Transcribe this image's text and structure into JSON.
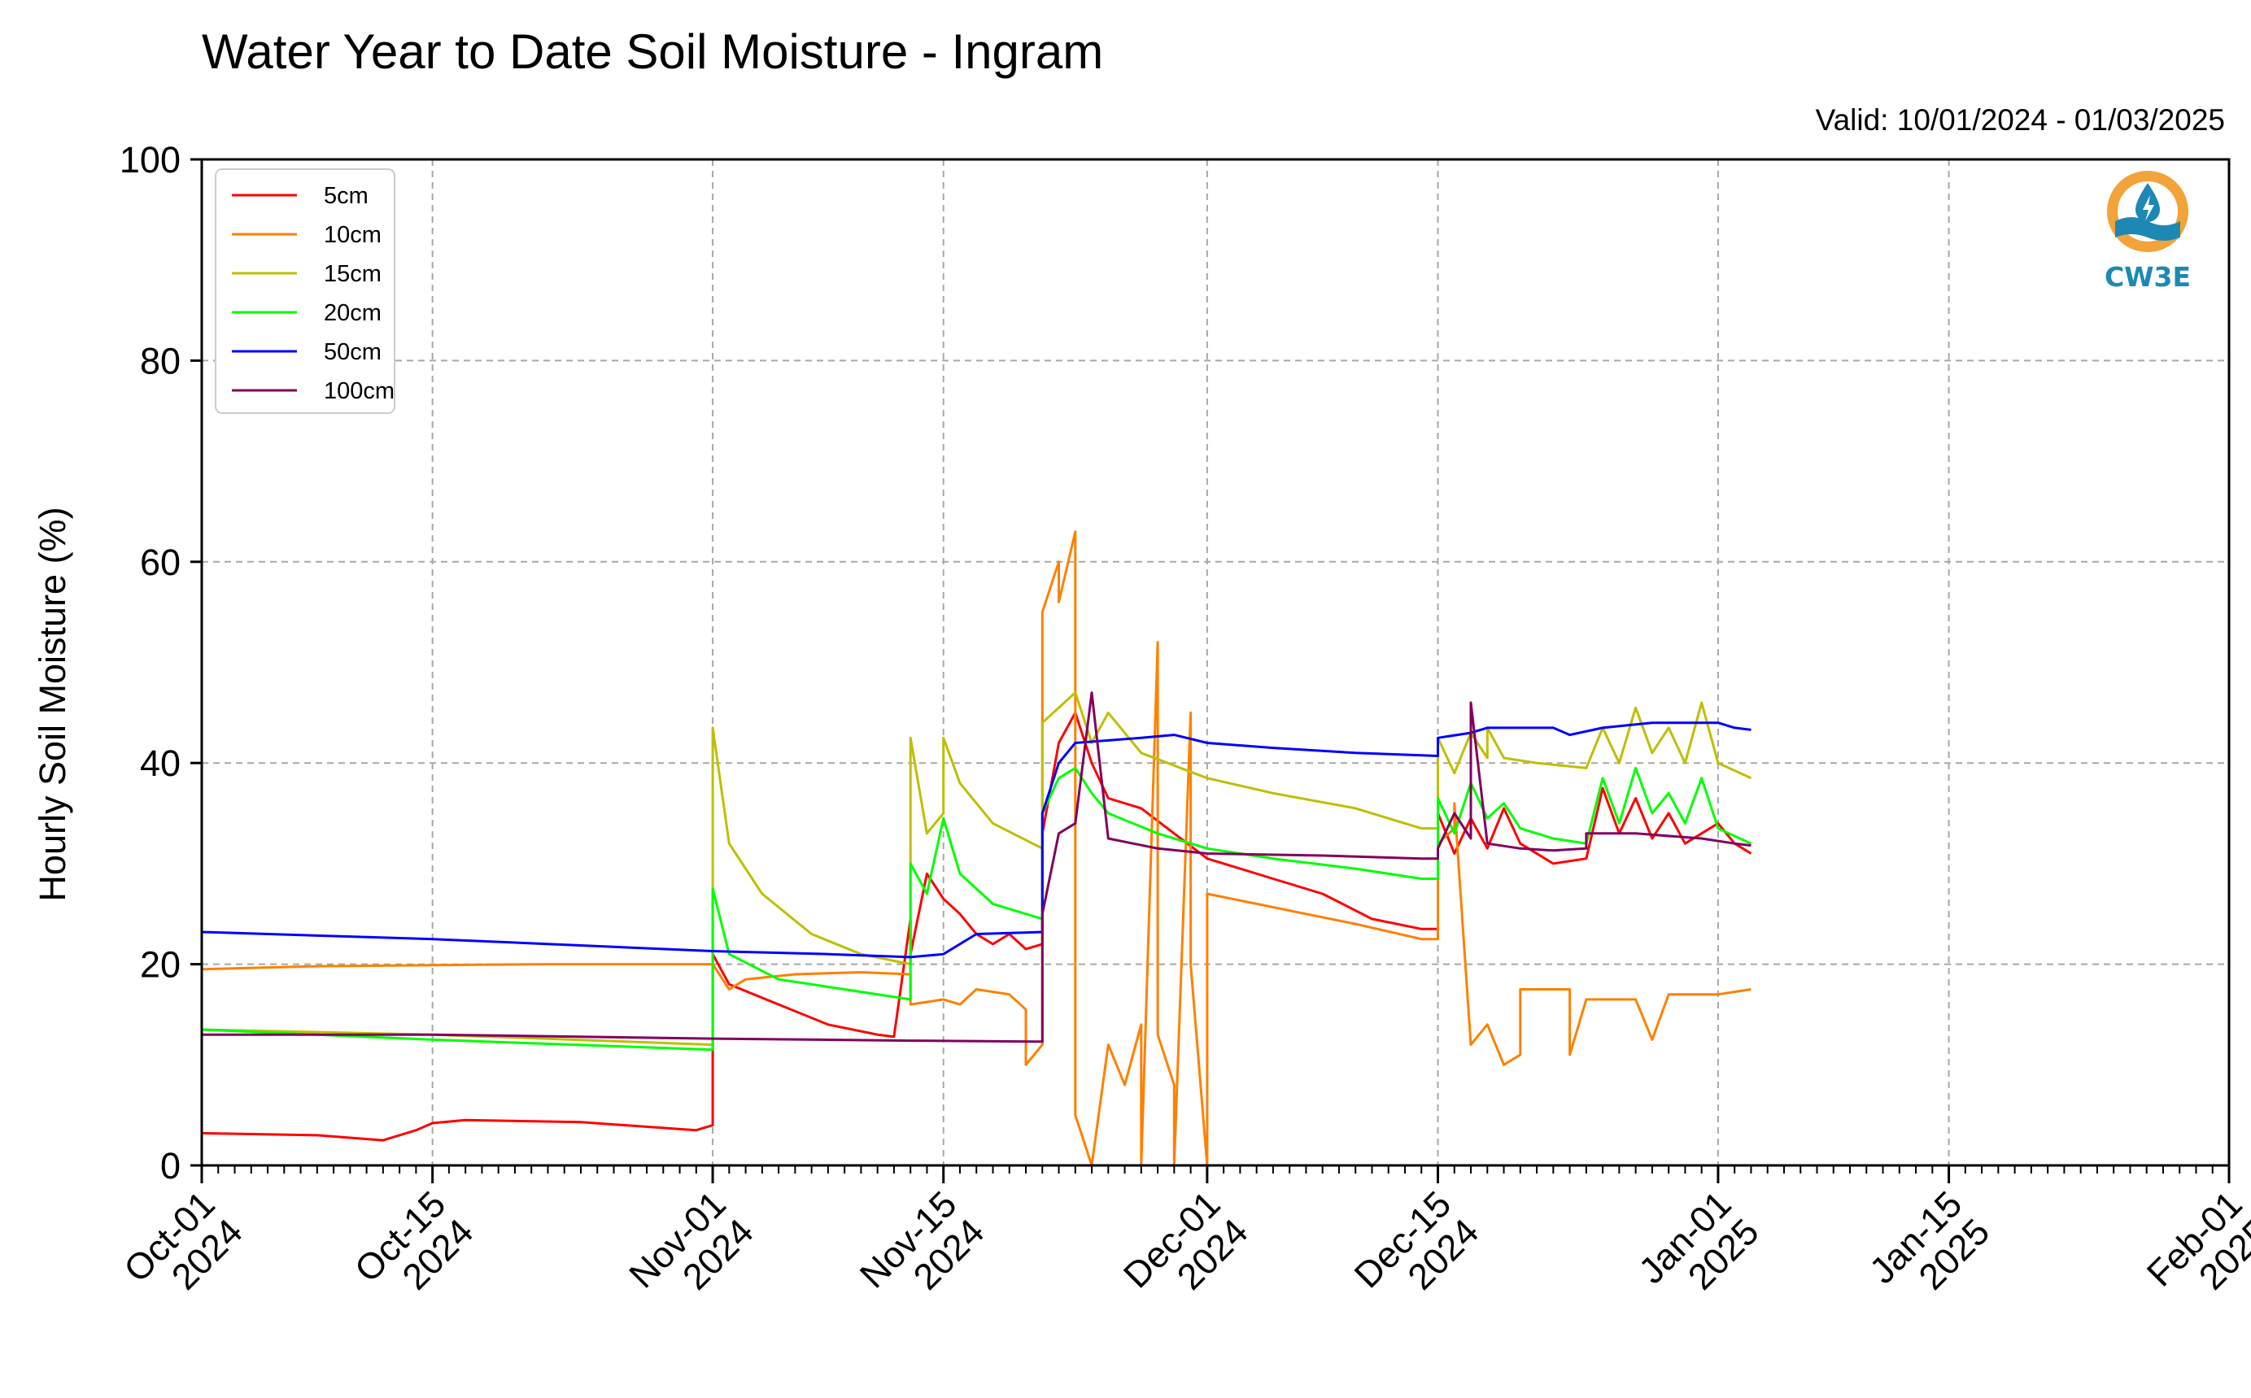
{
  "chart_data": {
    "type": "line",
    "title": "Water Year to Date Soil Moisture - Ingram",
    "subtitle": "Valid: 10/01/2024 - 01/03/2025",
    "ylabel": "Hourly Soil Moisture (%)",
    "xlabel": "",
    "ylim": [
      0,
      100
    ],
    "xlim": [
      "2024-10-01",
      "2025-02-01"
    ],
    "y_ticks": [
      "0",
      "20",
      "40",
      "60",
      "80",
      "100"
    ],
    "x_ticks": [
      {
        "date": "2024-10-01",
        "label": [
          "Oct-01",
          "2024"
        ]
      },
      {
        "date": "2024-10-15",
        "label": [
          "Oct-15",
          "2024"
        ]
      },
      {
        "date": "2024-11-01",
        "label": [
          "Nov-01",
          "2024"
        ]
      },
      {
        "date": "2024-11-15",
        "label": [
          "Nov-15",
          "2024"
        ]
      },
      {
        "date": "2024-12-01",
        "label": [
          "Dec-01",
          "2024"
        ]
      },
      {
        "date": "2024-12-15",
        "label": [
          "Dec-15",
          "2024"
        ]
      },
      {
        "date": "2025-01-01",
        "label": [
          "Jan-01",
          "2025"
        ]
      },
      {
        "date": "2025-01-15",
        "label": [
          "Jan-15",
          "2025"
        ]
      },
      {
        "date": "2025-02-01",
        "label": [
          "Feb-01",
          "2025"
        ]
      }
    ],
    "grid": true,
    "legend_position": "top-left",
    "logo_text": "CW3E",
    "series": [
      {
        "name": "5cm",
        "color": "#ff0000",
        "points": [
          [
            "2024-10-01",
            3.2
          ],
          [
            "2024-10-08",
            3.0
          ],
          [
            "2024-10-12",
            2.5
          ],
          [
            "2024-10-14",
            3.5
          ],
          [
            "2024-10-15",
            4.2
          ],
          [
            "2024-10-17",
            4.5
          ],
          [
            "2024-10-24",
            4.3
          ],
          [
            "2024-10-31",
            3.5
          ],
          [
            "2024-11-01",
            4.0
          ],
          [
            "2024-11-01",
            21.0
          ],
          [
            "2024-11-02",
            18.0
          ],
          [
            "2024-11-05",
            16.0
          ],
          [
            "2024-11-08",
            14.0
          ],
          [
            "2024-11-11",
            13.0
          ],
          [
            "2024-11-12",
            12.8
          ],
          [
            "2024-11-13",
            24.5
          ],
          [
            "2024-11-13",
            21.0
          ],
          [
            "2024-11-14",
            29.0
          ],
          [
            "2024-11-15",
            26.5
          ],
          [
            "2024-11-16",
            25.0
          ],
          [
            "2024-11-17",
            23.0
          ],
          [
            "2024-11-18",
            22.0
          ],
          [
            "2024-11-19",
            23.0
          ],
          [
            "2024-11-20",
            21.5
          ],
          [
            "2024-11-21",
            22.0
          ],
          [
            "2024-11-21",
            33.0
          ],
          [
            "2024-11-22",
            42.0
          ],
          [
            "2024-11-23",
            45.0
          ],
          [
            "2024-11-24",
            40.0
          ],
          [
            "2024-11-25",
            36.5
          ],
          [
            "2024-11-27",
            35.5
          ],
          [
            "2024-11-29",
            33.0
          ],
          [
            "2024-12-01",
            30.5
          ],
          [
            "2024-12-03",
            29.5
          ],
          [
            "2024-12-05",
            28.5
          ],
          [
            "2024-12-08",
            27.0
          ],
          [
            "2024-12-11",
            24.5
          ],
          [
            "2024-12-14",
            23.5
          ],
          [
            "2024-12-15",
            23.5
          ],
          [
            "2024-12-15",
            35.0
          ],
          [
            "2024-12-16",
            31.0
          ],
          [
            "2024-12-17",
            34.5
          ],
          [
            "2024-12-18",
            31.5
          ],
          [
            "2024-12-19",
            35.5
          ],
          [
            "2024-12-20",
            32.0
          ],
          [
            "2024-12-22",
            30.0
          ],
          [
            "2024-12-24",
            30.5
          ],
          [
            "2024-12-25",
            37.5
          ],
          [
            "2024-12-26",
            33.0
          ],
          [
            "2024-12-27",
            36.5
          ],
          [
            "2024-12-28",
            32.5
          ],
          [
            "2024-12-29",
            35.0
          ],
          [
            "2024-12-30",
            32.0
          ],
          [
            "2025-01-01",
            34.0
          ],
          [
            "2025-01-02",
            32.0
          ],
          [
            "2025-01-03",
            31.0
          ]
        ]
      },
      {
        "name": "10cm",
        "color": "#ff8000",
        "points": [
          [
            "2024-10-01",
            19.5
          ],
          [
            "2024-10-08",
            19.8
          ],
          [
            "2024-10-15",
            19.9
          ],
          [
            "2024-10-22",
            20.0
          ],
          [
            "2024-11-01",
            20.0
          ],
          [
            "2024-11-02",
            17.5
          ],
          [
            "2024-11-03",
            18.5
          ],
          [
            "2024-11-06",
            19.0
          ],
          [
            "2024-11-10",
            19.2
          ],
          [
            "2024-11-13",
            19.0
          ],
          [
            "2024-11-13",
            16.0
          ],
          [
            "2024-11-15",
            16.5
          ],
          [
            "2024-11-16",
            16.0
          ],
          [
            "2024-11-17",
            17.5
          ],
          [
            "2024-11-19",
            17.0
          ],
          [
            "2024-11-20",
            15.5
          ],
          [
            "2024-11-20",
            10.0
          ],
          [
            "2024-11-21",
            12.0
          ],
          [
            "2024-11-21",
            55.0
          ],
          [
            "2024-11-22",
            60.0
          ],
          [
            "2024-11-22",
            56.0
          ],
          [
            "2024-11-23",
            63.0
          ],
          [
            "2024-11-23",
            5.0
          ],
          [
            "2024-11-24",
            0.0
          ],
          [
            "2024-11-25",
            12.0
          ],
          [
            "2024-11-26",
            8.0
          ],
          [
            "2024-11-27",
            14.0
          ],
          [
            "2024-11-27",
            0.0
          ],
          [
            "2024-11-28",
            52.0
          ],
          [
            "2024-11-28",
            13.0
          ],
          [
            "2024-11-29",
            8.0
          ],
          [
            "2024-11-29",
            0.0
          ],
          [
            "2024-11-30",
            45.0
          ],
          [
            "2024-11-30",
            20.0
          ],
          [
            "2024-12-01",
            0.0
          ],
          [
            "2024-12-01",
            27.0
          ],
          [
            "2024-12-04",
            26.0
          ],
          [
            "2024-12-07",
            25.0
          ],
          [
            "2024-12-10",
            24.0
          ],
          [
            "2024-12-14",
            22.5
          ],
          [
            "2024-12-15",
            22.5
          ],
          [
            "2024-12-15",
            32.0
          ],
          [
            "2024-12-16",
            33.5
          ],
          [
            "2024-12-16",
            36.0
          ],
          [
            "2024-12-17",
            12.0
          ],
          [
            "2024-12-18",
            14.0
          ],
          [
            "2024-12-19",
            10.0
          ],
          [
            "2024-12-20",
            11.0
          ],
          [
            "2024-12-20",
            17.5
          ],
          [
            "2024-12-23",
            17.5
          ],
          [
            "2024-12-23",
            11.0
          ],
          [
            "2024-12-24",
            16.5
          ],
          [
            "2024-12-27",
            16.5
          ],
          [
            "2024-12-28",
            12.5
          ],
          [
            "2024-12-29",
            17.0
          ],
          [
            "2025-01-01",
            17.0
          ],
          [
            "2025-01-03",
            17.5
          ]
        ]
      },
      {
        "name": "15cm",
        "color": "#bfbf00",
        "points": [
          [
            "2024-10-01",
            13.5
          ],
          [
            "2024-10-15",
            13.0
          ],
          [
            "2024-11-01",
            12.0
          ],
          [
            "2024-11-01",
            43.5
          ],
          [
            "2024-11-02",
            32.0
          ],
          [
            "2024-11-04",
            27.0
          ],
          [
            "2024-11-07",
            23.0
          ],
          [
            "2024-11-10",
            21.0
          ],
          [
            "2024-11-13",
            20.0
          ],
          [
            "2024-11-13",
            42.5
          ],
          [
            "2024-11-14",
            33.0
          ],
          [
            "2024-11-15",
            35.0
          ],
          [
            "2024-11-15",
            42.5
          ],
          [
            "2024-11-16",
            38.0
          ],
          [
            "2024-11-18",
            34.0
          ],
          [
            "2024-11-21",
            31.5
          ],
          [
            "2024-11-21",
            44.0
          ],
          [
            "2024-11-23",
            47.0
          ],
          [
            "2024-11-24",
            42.0
          ],
          [
            "2024-11-25",
            45.0
          ],
          [
            "2024-11-27",
            41.0
          ],
          [
            "2024-12-01",
            38.5
          ],
          [
            "2024-12-05",
            37.0
          ],
          [
            "2024-12-10",
            35.5
          ],
          [
            "2024-12-14",
            33.5
          ],
          [
            "2024-12-15",
            33.5
          ],
          [
            "2024-12-15",
            42.5
          ],
          [
            "2024-12-16",
            39.0
          ],
          [
            "2024-12-17",
            43.0
          ],
          [
            "2024-12-18",
            40.5
          ],
          [
            "2024-12-18",
            43.5
          ],
          [
            "2024-12-19",
            40.5
          ],
          [
            "2024-12-21",
            40.0
          ],
          [
            "2024-12-24",
            39.5
          ],
          [
            "2024-12-25",
            43.5
          ],
          [
            "2024-12-26",
            40.0
          ],
          [
            "2024-12-27",
            45.5
          ],
          [
            "2024-12-28",
            41.0
          ],
          [
            "2024-12-29",
            43.5
          ],
          [
            "2024-12-30",
            40.0
          ],
          [
            "2024-12-31",
            46.0
          ],
          [
            "2025-01-01",
            40.0
          ],
          [
            "2025-01-03",
            38.5
          ]
        ]
      },
      {
        "name": "20cm",
        "color": "#00ff00",
        "points": [
          [
            "2024-10-01",
            13.5
          ],
          [
            "2024-10-15",
            12.5
          ],
          [
            "2024-11-01",
            11.5
          ],
          [
            "2024-11-01",
            27.5
          ],
          [
            "2024-11-02",
            21.0
          ],
          [
            "2024-11-05",
            18.5
          ],
          [
            "2024-11-09",
            17.5
          ],
          [
            "2024-11-13",
            16.5
          ],
          [
            "2024-11-13",
            30.0
          ],
          [
            "2024-11-14",
            27.0
          ],
          [
            "2024-11-15",
            34.5
          ],
          [
            "2024-11-16",
            29.0
          ],
          [
            "2024-11-18",
            26.0
          ],
          [
            "2024-11-21",
            24.5
          ],
          [
            "2024-11-21",
            35.0
          ],
          [
            "2024-11-22",
            38.5
          ],
          [
            "2024-11-23",
            39.5
          ],
          [
            "2024-11-24",
            37.0
          ],
          [
            "2024-11-25",
            35.0
          ],
          [
            "2024-11-28",
            33.0
          ],
          [
            "2024-12-01",
            31.5
          ],
          [
            "2024-12-05",
            30.5
          ],
          [
            "2024-12-10",
            29.5
          ],
          [
            "2024-12-14",
            28.5
          ],
          [
            "2024-12-15",
            28.5
          ],
          [
            "2024-12-15",
            36.5
          ],
          [
            "2024-12-16",
            33.0
          ],
          [
            "2024-12-17",
            38.0
          ],
          [
            "2024-12-18",
            34.5
          ],
          [
            "2024-12-19",
            36.0
          ],
          [
            "2024-12-20",
            33.5
          ],
          [
            "2024-12-22",
            32.5
          ],
          [
            "2024-12-24",
            32.0
          ],
          [
            "2024-12-25",
            38.5
          ],
          [
            "2024-12-26",
            34.0
          ],
          [
            "2024-12-27",
            39.5
          ],
          [
            "2024-12-28",
            35.0
          ],
          [
            "2024-12-29",
            37.0
          ],
          [
            "2024-12-30",
            34.0
          ],
          [
            "2024-12-31",
            38.5
          ],
          [
            "2025-01-01",
            33.5
          ],
          [
            "2025-01-03",
            32.0
          ]
        ]
      },
      {
        "name": "50cm",
        "color": "#0000ff",
        "points": [
          [
            "2024-10-01",
            23.2
          ],
          [
            "2024-10-15",
            22.5
          ],
          [
            "2024-11-01",
            21.3
          ],
          [
            "2024-11-08",
            21.0
          ],
          [
            "2024-11-13",
            20.7
          ],
          [
            "2024-11-15",
            21.0
          ],
          [
            "2024-11-17",
            23.0
          ],
          [
            "2024-11-21",
            23.2
          ],
          [
            "2024-11-21",
            35.0
          ],
          [
            "2024-11-22",
            40.0
          ],
          [
            "2024-11-23",
            42.0
          ],
          [
            "2024-11-27",
            42.5
          ],
          [
            "2024-11-29",
            42.8
          ],
          [
            "2024-12-01",
            42.0
          ],
          [
            "2024-12-05",
            41.5
          ],
          [
            "2024-12-10",
            41.0
          ],
          [
            "2024-12-15",
            40.7
          ],
          [
            "2024-12-15",
            42.5
          ],
          [
            "2024-12-17",
            43.0
          ],
          [
            "2024-12-18",
            43.5
          ],
          [
            "2024-12-22",
            43.5
          ],
          [
            "2024-12-23",
            42.8
          ],
          [
            "2024-12-25",
            43.5
          ],
          [
            "2024-12-28",
            44.0
          ],
          [
            "2025-01-01",
            44.0
          ],
          [
            "2025-01-02",
            43.5
          ],
          [
            "2025-01-03",
            43.3
          ]
        ]
      },
      {
        "name": "100cm",
        "color": "#800060",
        "points": [
          [
            "2024-10-01",
            13.0
          ],
          [
            "2024-10-15",
            13.0
          ],
          [
            "2024-11-01",
            12.6
          ],
          [
            "2024-11-13",
            12.4
          ],
          [
            "2024-11-21",
            12.3
          ],
          [
            "2024-11-21",
            25.0
          ],
          [
            "2024-11-22",
            33.0
          ],
          [
            "2024-11-23",
            34.0
          ],
          [
            "2024-11-24",
            47.0
          ],
          [
            "2024-11-25",
            32.5
          ],
          [
            "2024-11-28",
            31.5
          ],
          [
            "2024-12-01",
            31.0
          ],
          [
            "2024-12-08",
            30.8
          ],
          [
            "2024-12-14",
            30.5
          ],
          [
            "2024-12-15",
            30.5
          ],
          [
            "2024-12-15",
            31.5
          ],
          [
            "2024-12-16",
            35.0
          ],
          [
            "2024-12-17",
            32.5
          ],
          [
            "2024-12-17",
            46.0
          ],
          [
            "2024-12-18",
            32.0
          ],
          [
            "2024-12-20",
            31.5
          ],
          [
            "2024-12-22",
            31.3
          ],
          [
            "2024-12-24",
            31.5
          ],
          [
            "2024-12-24",
            33.0
          ],
          [
            "2024-12-27",
            33.0
          ],
          [
            "2024-12-31",
            32.5
          ],
          [
            "2025-01-02",
            32.0
          ],
          [
            "2025-01-03",
            31.8
          ]
        ]
      }
    ]
  }
}
